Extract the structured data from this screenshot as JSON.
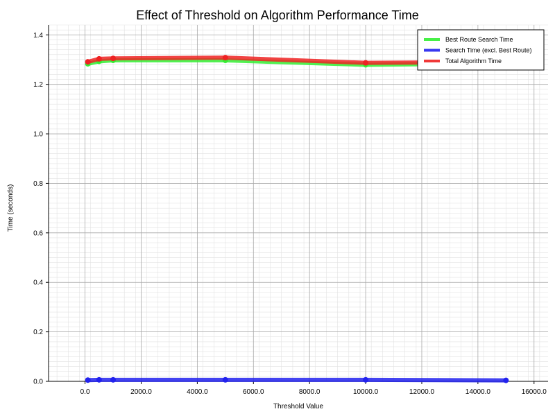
{
  "chart_data": {
    "type": "line",
    "title": "Effect of Threshold on Algorithm Performance Time",
    "xlabel": "Threshold Value",
    "ylabel": "Time (seconds)",
    "x": [
      100,
      500,
      1000,
      5000,
      10000,
      15000
    ],
    "xlim": [
      -1300,
      16500
    ],
    "ylim": [
      0,
      1.44
    ],
    "xticks": [
      0,
      2000,
      4000,
      6000,
      8000,
      10000,
      12000,
      14000,
      16000
    ],
    "xtick_labels": [
      "0.0",
      "2000.0",
      "4000.0",
      "6000.0",
      "8000.0",
      "10000.0",
      "12000.0",
      "14000.0",
      "16000.0"
    ],
    "yticks": [
      0.0,
      0.2,
      0.4,
      0.6,
      0.8,
      1.0,
      1.2,
      1.4
    ],
    "ytick_labels": [
      "0.0",
      "0.2",
      "0.4",
      "0.6",
      "0.8",
      "1.0",
      "1.2",
      "1.4"
    ],
    "grid": true,
    "minor_grid": true,
    "legend_position": "top-right",
    "series": [
      {
        "name": "Best Route Search Time",
        "color": "#33ee33",
        "values": [
          1.283,
          1.293,
          1.297,
          1.297,
          1.279,
          1.285
        ]
      },
      {
        "name": "Search Time (excl. Best Route)",
        "color": "#2222ee",
        "values": [
          0.005,
          0.006,
          0.006,
          0.006,
          0.006,
          0.004
        ]
      },
      {
        "name": "Total Algorithm Time",
        "color": "#ee2222",
        "values": [
          1.291,
          1.303,
          1.305,
          1.308,
          1.287,
          1.29
        ]
      }
    ]
  }
}
